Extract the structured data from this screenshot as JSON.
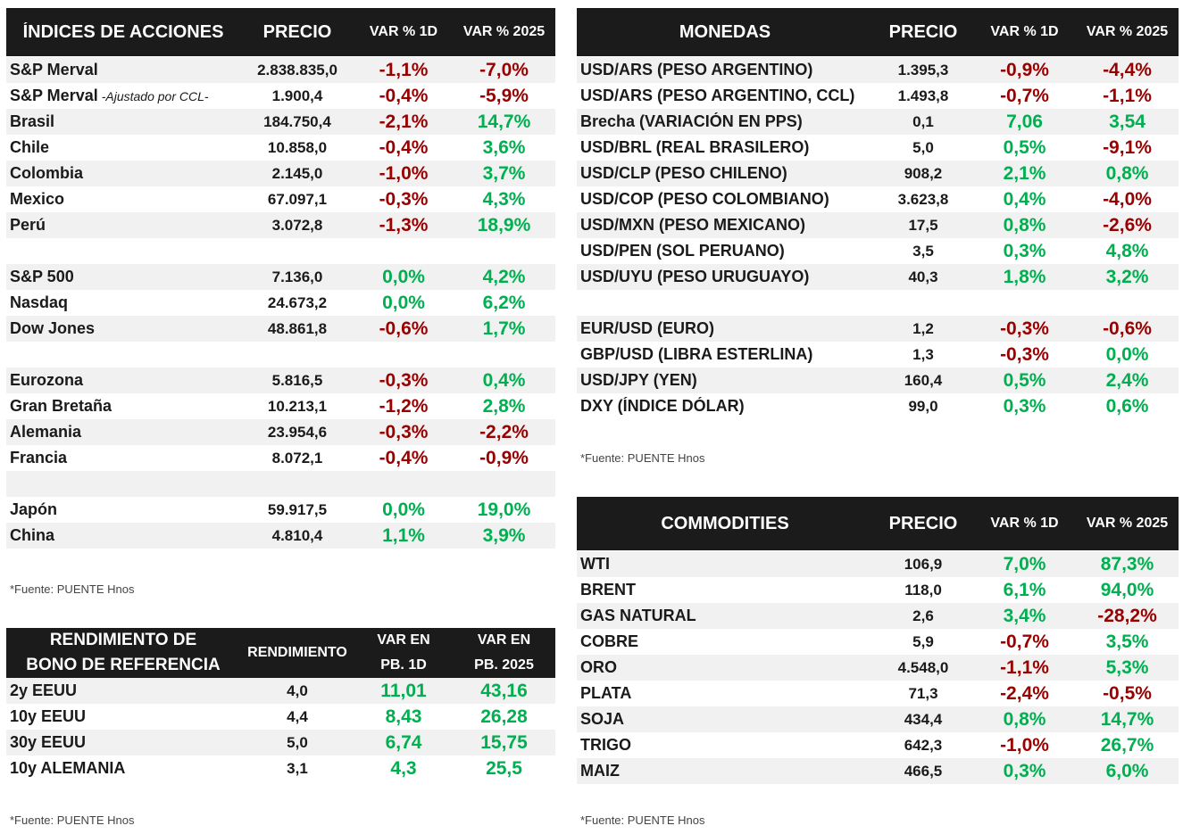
{
  "acciones": {
    "headers": [
      "ÍNDICES DE ACCIONES",
      "PRECIO",
      "VAR % 1D",
      "VAR % 2025"
    ],
    "rows": [
      {
        "name": "S&P Merval",
        "sub": "",
        "price": "2.838.835,0",
        "d1": "-1,1%",
        "y": "-7,0%"
      },
      {
        "name": "S&P Merval",
        "sub": "-Ajustado por CCL-",
        "price": "1.900,4",
        "d1": "-0,4%",
        "y": "-5,9%"
      },
      {
        "name": "Brasil",
        "sub": "",
        "price": "184.750,4",
        "d1": "-2,1%",
        "y": "14,7%"
      },
      {
        "name": "Chile",
        "sub": "",
        "price": "10.858,0",
        "d1": "-0,4%",
        "y": "3,6%"
      },
      {
        "name": "Colombia",
        "sub": "",
        "price": "2.145,0",
        "d1": "-1,0%",
        "y": "3,7%"
      },
      {
        "name": "Mexico",
        "sub": "",
        "price": "67.097,1",
        "d1": "-0,3%",
        "y": "4,3%"
      },
      {
        "name": "Perú",
        "sub": "",
        "price": "3.072,8",
        "d1": "-1,3%",
        "y": "18,9%"
      },
      {
        "blank": true
      },
      {
        "name": "S&P 500",
        "sub": "",
        "price": "7.136,0",
        "d1": "0,0%",
        "y": "4,2%"
      },
      {
        "name": "Nasdaq",
        "sub": "",
        "price": "24.673,2",
        "d1": "0,0%",
        "y": "6,2%"
      },
      {
        "name": "Dow Jones",
        "sub": "",
        "price": "48.861,8",
        "d1": "-0,6%",
        "y": "1,7%"
      },
      {
        "blank": true
      },
      {
        "name": "Eurozona",
        "sub": "",
        "price": "5.816,5",
        "d1": "-0,3%",
        "y": "0,4%"
      },
      {
        "name": "Gran Bretaña",
        "sub": "",
        "price": "10.213,1",
        "d1": "-1,2%",
        "y": "2,8%"
      },
      {
        "name": "Alemania",
        "sub": "",
        "price": "23.954,6",
        "d1": "-0,3%",
        "y": "-2,2%"
      },
      {
        "name": "Francia",
        "sub": "",
        "price": "8.072,1",
        "d1": "-0,4%",
        "y": "-0,9%"
      },
      {
        "blank": true
      },
      {
        "name": "Japón",
        "sub": "",
        "price": "59.917,5",
        "d1": "0,0%",
        "y": "19,0%"
      },
      {
        "name": "China",
        "sub": "",
        "price": "4.810,4",
        "d1": "1,1%",
        "y": "3,9%"
      }
    ],
    "source": "*Fuente: PUENTE Hnos"
  },
  "monedas": {
    "headers": [
      "MONEDAS",
      "PRECIO",
      "VAR % 1D",
      "VAR % 2025"
    ],
    "rows": [
      {
        "name": "USD/ARS (PESO ARGENTINO)",
        "price": "1.395,3",
        "d1": "-0,9%",
        "y": "-4,4%"
      },
      {
        "name": "USD/ARS (PESO ARGENTINO, CCL)",
        "price": "1.493,8",
        "d1": "-0,7%",
        "y": "-1,1%"
      },
      {
        "name": "Brecha (VARIACIÓN EN PPS)",
        "price": "0,1",
        "d1": "7,06",
        "y": "3,54"
      },
      {
        "name": "USD/BRL (REAL BRASILERO)",
        "price": "5,0",
        "d1": "0,5%",
        "y": "-9,1%"
      },
      {
        "name": "USD/CLP (PESO CHILENO)",
        "price": "908,2",
        "d1": "2,1%",
        "y": "0,8%"
      },
      {
        "name": "USD/COP (PESO COLOMBIANO)",
        "price": "3.623,8",
        "d1": "0,4%",
        "y": "-4,0%"
      },
      {
        "name": "USD/MXN (PESO MEXICANO)",
        "price": "17,5",
        "d1": "0,8%",
        "y": "-2,6%"
      },
      {
        "name": "USD/PEN (SOL PERUANO)",
        "price": "3,5",
        "d1": "0,3%",
        "y": "4,8%"
      },
      {
        "name": "USD/UYU (PESO URUGUAYO)",
        "price": "40,3",
        "d1": "1,8%",
        "y": "3,2%"
      },
      {
        "blank": true
      },
      {
        "name": "EUR/USD (EURO)",
        "price": "1,2",
        "d1": "-0,3%",
        "y": "-0,6%"
      },
      {
        "name": "GBP/USD (LIBRA ESTERLINA)",
        "price": "1,3",
        "d1": "-0,3%",
        "y": "0,0%"
      },
      {
        "name": "USD/JPY (YEN)",
        "price": "160,4",
        "d1": "0,5%",
        "y": "2,4%"
      },
      {
        "name": "DXY (ÍNDICE DÓLAR)",
        "price": "99,0",
        "d1": "0,3%",
        "y": "0,6%"
      }
    ],
    "source": "*Fuente: PUENTE Hnos"
  },
  "commodities": {
    "headers": [
      "COMMODITIES",
      "PRECIO",
      "VAR % 1D",
      "VAR % 2025"
    ],
    "rows": [
      {
        "name": "WTI",
        "price": "106,9",
        "d1": "7,0%",
        "y": "87,3%"
      },
      {
        "name": "BRENT",
        "price": "118,0",
        "d1": "6,1%",
        "y": "94,0%"
      },
      {
        "name": "GAS NATURAL",
        "price": "2,6",
        "d1": "3,4%",
        "y": "-28,2%"
      },
      {
        "name": "COBRE",
        "price": "5,9",
        "d1": "-0,7%",
        "y": "3,5%"
      },
      {
        "name": "ORO",
        "price": "4.548,0",
        "d1": "-1,1%",
        "y": "5,3%"
      },
      {
        "name": "PLATA",
        "price": "71,3",
        "d1": "-2,4%",
        "y": "-0,5%"
      },
      {
        "name": "SOJA",
        "price": "434,4",
        "d1": "0,8%",
        "y": "14,7%"
      },
      {
        "name": "TRIGO",
        "price": "642,3",
        "d1": "-1,0%",
        "y": "26,7%"
      },
      {
        "name": "MAIZ",
        "price": "466,5",
        "d1": "0,3%",
        "y": "6,0%"
      }
    ],
    "source": "*Fuente: PUENTE Hnos"
  },
  "bonos": {
    "headers": {
      "name1": "RENDIMIENTO DE",
      "name2": "BONO DE REFERENCIA",
      "rend": "RENDIMIENTO",
      "d1a": "VAR EN",
      "d1b": "PB. 1D",
      "ya": "VAR EN",
      "yb": "PB. 2025"
    },
    "rows": [
      {
        "name": "2y EEUU",
        "price": "4,0",
        "d1": "11,01",
        "y": "43,16"
      },
      {
        "name": "10y EEUU",
        "price": "4,4",
        "d1": "8,43",
        "y": "26,28"
      },
      {
        "name": "30y EEUU",
        "price": "5,0",
        "d1": "6,74",
        "y": "15,75"
      },
      {
        "name": "10y ALEMANIA",
        "price": "3,1",
        "d1": "4,3",
        "y": "25,5"
      }
    ],
    "source": "*Fuente: PUENTE Hnos"
  },
  "colors": {
    "positive": "#00b050",
    "negative": "#990000",
    "header_bg": "#1b1b1b",
    "stripe": "#f1f1f1"
  }
}
